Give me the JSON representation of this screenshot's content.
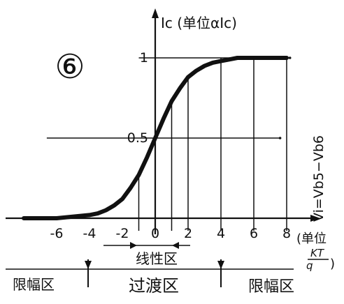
{
  "figure_number": "⑥",
  "chart_data": {
    "type": "line",
    "ylabel": "Ic (单位αIc)",
    "xlabel_top": "(单位",
    "xlabel_unit_num": "KT",
    "xlabel_unit_den": "q",
    "xlabel_close": ")",
    "vertical_label": "Vi=Vb5−Vb6",
    "x_ticks": [
      -6,
      -4,
      -2,
      0,
      2,
      4,
      6,
      8
    ],
    "x_tick_labels": [
      "-6",
      "-4",
      "-2",
      "0",
      "2",
      "4",
      "6",
      "8"
    ],
    "y_ticks": [
      0.5,
      1
    ],
    "y_tick_labels": [
      "0.5",
      "1"
    ],
    "xlim": [
      -8,
      8
    ],
    "ylim": [
      0,
      1
    ],
    "series": [
      {
        "x": [
          -8,
          -6,
          -4,
          -3.5,
          -3,
          -2.5,
          -2,
          -1.5,
          -1,
          -0.5,
          0,
          0.5,
          1,
          1.5,
          2,
          2.5,
          3,
          3.5,
          4,
          4.5,
          5,
          6,
          7,
          8
        ],
        "y": [
          0,
          0,
          0.02,
          0.03,
          0.05,
          0.08,
          0.12,
          0.19,
          0.27,
          0.38,
          0.5,
          0.62,
          0.73,
          0.81,
          0.88,
          0.92,
          0.95,
          0.97,
          0.98,
          0.99,
          1,
          1,
          1,
          1
        ]
      }
    ],
    "drop_lines_x": [
      -1,
      0,
      1,
      2,
      4,
      6,
      8
    ],
    "regions": [
      {
        "label": "限幅区"
      },
      {
        "label": "过渡区"
      },
      {
        "label": "限幅区"
      }
    ],
    "linear_region_label": "线性区",
    "grid": false
  }
}
